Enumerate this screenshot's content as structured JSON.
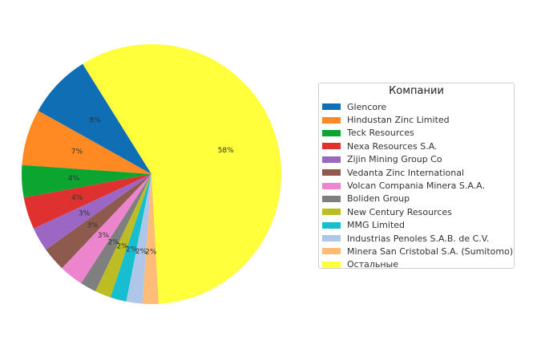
{
  "chart_data": {
    "type": "pie",
    "legend_title": "Компании",
    "legend_position": "right",
    "start_angle_deg": 122,
    "direction": "counterclockwise",
    "slices": [
      {
        "label": "Glencore",
        "value": 8,
        "pct_label": "8%",
        "color": "#0f6eb4"
      },
      {
        "label": "Hindustan Zinc Limited",
        "value": 7,
        "pct_label": "7%",
        "color": "#ff8a24"
      },
      {
        "label": "Teck Resources",
        "value": 4,
        "pct_label": "4%",
        "color": "#0ba52f"
      },
      {
        "label": "Nexa Resources S.A.",
        "value": 4,
        "pct_label": "4%",
        "color": "#e03131"
      },
      {
        "label": "Zijin Mining Group Co",
        "value": 3,
        "pct_label": "3%",
        "color": "#9b66c4"
      },
      {
        "label": "Vedanta Zinc International",
        "value": 3,
        "pct_label": "3%",
        "color": "#8f5a4e"
      },
      {
        "label": "Volcan Compania Minera S.A.A.",
        "value": 3,
        "pct_label": "3%",
        "color": "#ec85ce"
      },
      {
        "label": "Boliden Group",
        "value": 2,
        "pct_label": "2%",
        "color": "#7f7f7f"
      },
      {
        "label": "New Century Resources",
        "value": 2,
        "pct_label": "2%",
        "color": "#bcbd22"
      },
      {
        "label": "MMG Limited",
        "value": 2,
        "pct_label": "2%",
        "color": "#17becf"
      },
      {
        "label": "Industrias Penoles S.A.B. de C.V.",
        "value": 2,
        "pct_label": "2%",
        "color": "#aec7e8"
      },
      {
        "label": "Minera San Cristobal S.A. (Sumitomo)",
        "value": 2,
        "pct_label": "2%",
        "color": "#ffbb78"
      },
      {
        "label": "Остальные",
        "value": 58,
        "pct_label": "58%",
        "color": "#ffff3c"
      }
    ]
  }
}
